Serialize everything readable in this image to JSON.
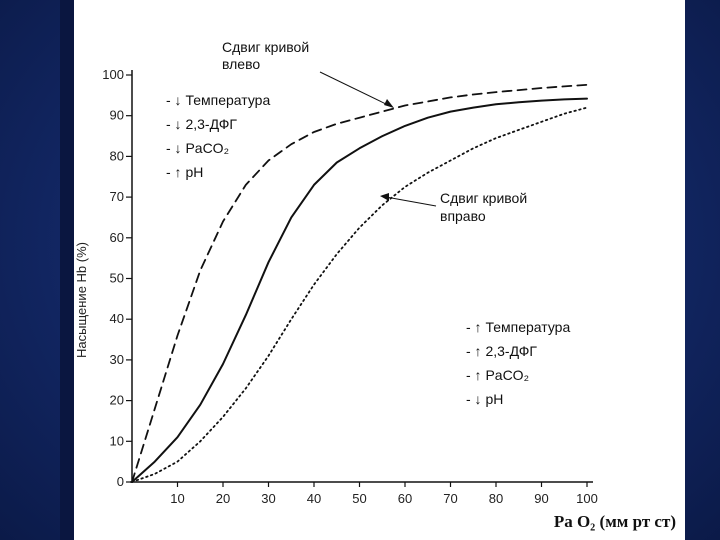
{
  "chart_data": {
    "type": "line",
    "xlabel": "Ра О₂ (мм рт ст)",
    "ylabel": "Насыщение Нb (%)",
    "xlim": [
      0,
      100
    ],
    "ylim": [
      0,
      100
    ],
    "x_ticks": [
      "10",
      "20",
      "30",
      "40",
      "50",
      "60",
      "70",
      "80",
      "90",
      "100"
    ],
    "y_ticks": [
      "0",
      "10",
      "20",
      "30",
      "40",
      "50",
      "60",
      "70",
      "80",
      "90",
      "100"
    ],
    "series": [
      {
        "style": "dashed",
        "x": [
          0,
          5,
          10,
          15,
          20,
          25,
          30,
          35,
          40,
          45,
          50,
          55,
          60,
          65,
          70,
          75,
          80,
          85,
          90,
          95,
          100
        ],
        "y": [
          0,
          18,
          36,
          52,
          64,
          73,
          79,
          83,
          86,
          88,
          89.5,
          91,
          92.5,
          93.5,
          94.5,
          95.2,
          95.8,
          96.3,
          96.8,
          97.2,
          97.6
        ]
      },
      {
        "style": "solid",
        "x": [
          0,
          5,
          10,
          15,
          20,
          25,
          30,
          35,
          40,
          45,
          50,
          55,
          60,
          65,
          70,
          75,
          80,
          85,
          90,
          95,
          100
        ],
        "y": [
          0,
          5,
          11,
          19,
          29,
          41,
          54,
          65,
          73,
          78.5,
          82,
          85,
          87.5,
          89.5,
          91,
          92,
          92.8,
          93.3,
          93.7,
          94,
          94.2
        ]
      },
      {
        "style": "dotted",
        "x": [
          0,
          5,
          10,
          15,
          20,
          25,
          30,
          35,
          40,
          45,
          50,
          55,
          60,
          65,
          70,
          75,
          80,
          85,
          90,
          95,
          100
        ],
        "y": [
          0,
          2,
          5,
          10,
          16,
          23,
          31,
          40,
          48.5,
          56,
          62.5,
          68,
          72.5,
          76,
          79,
          82,
          84.5,
          86.5,
          88.5,
          90.5,
          92
        ]
      }
    ],
    "annotations": {
      "left_shift_title": [
        "Сдвиг кривой",
        "влево"
      ],
      "right_shift_title": [
        "Сдвиг кривой",
        "вправо"
      ],
      "left_factors": [
        "- ↓ Температура",
        "- ↓  2,3-ДФГ",
        "- ↓ PaCO₂",
        "- ↑ pH"
      ],
      "right_factors": [
        "- ↑ Температура",
        "- ↑  2,3-ДФГ",
        "- ↑ PaCO₂",
        "- ↓ pH"
      ]
    }
  }
}
